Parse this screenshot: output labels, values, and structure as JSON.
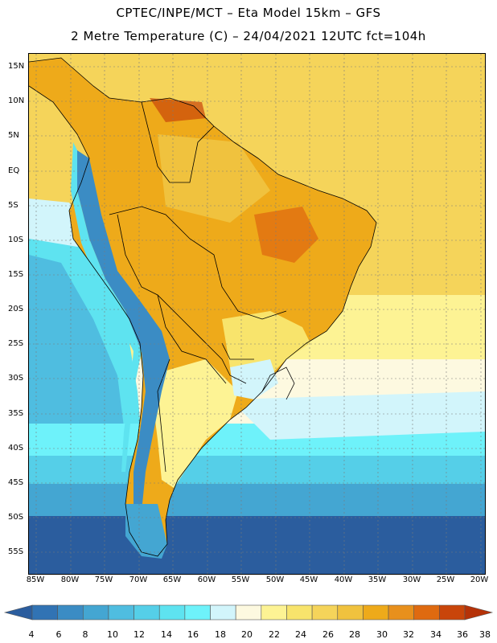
{
  "header": {
    "title_line1": "CPTEC/INPE/MCT –  Eta Model 15km – GFS",
    "title_line2": "2 Metre Temperature (C) – 24/04/2021 12UTC fct=104h"
  },
  "axes": {
    "latitudes": [
      "15N",
      "10N",
      "5N",
      "EQ",
      "5S",
      "10S",
      "15S",
      "20S",
      "25S",
      "30S",
      "35S",
      "40S",
      "45S",
      "50S",
      "55S"
    ],
    "longitudes": [
      "85W",
      "80W",
      "75W",
      "70W",
      "65W",
      "60W",
      "55W",
      "50W",
      "45W",
      "40W",
      "35W",
      "30W",
      "25W",
      "20W"
    ]
  },
  "colorbar": {
    "labels": [
      "4",
      "6",
      "8",
      "10",
      "12",
      "14",
      "16",
      "18",
      "20",
      "22",
      "24",
      "26",
      "28",
      "30",
      "32",
      "34",
      "36",
      "38"
    ],
    "colors": [
      "#2b5d9e",
      "#3173b4",
      "#3b8cc4",
      "#44a6d2",
      "#4fbde0",
      "#55cfe8",
      "#5ee3f0",
      "#6ef2fa",
      "#d2f5fb",
      "#fdf9e0",
      "#fdf394",
      "#f8e46c",
      "#f5d45a",
      "#f0c23e",
      "#eeaa1a",
      "#e8901c",
      "#df6a10",
      "#c9450a",
      "#b53208"
    ]
  },
  "map_colors": {
    "ocean_deep": "#2b5d9e",
    "ocean_mid": "#3b8cc4",
    "ocean_cool": "#55cfe8",
    "ocean_cyan": "#6ef2fa",
    "ocean_pale": "#d2f5fb",
    "ocean_warm": "#f5d45a",
    "ocean_cream": "#fdf394",
    "land_hot": "#eeaa1a",
    "land_veryhot": "#df6a10",
    "land_warm": "#f8e46c",
    "andes": "#3b8cc4"
  }
}
